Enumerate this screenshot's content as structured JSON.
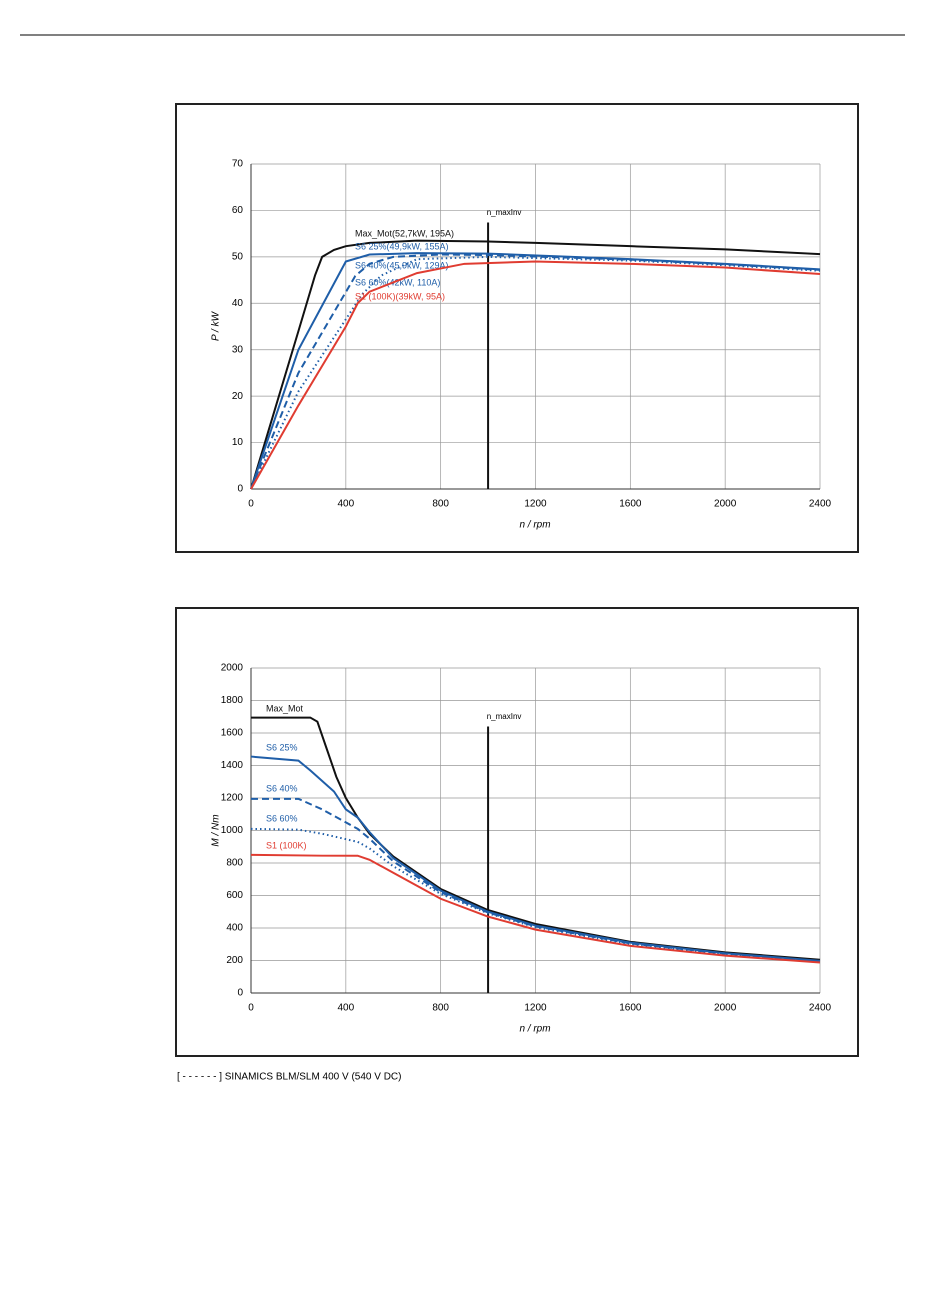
{
  "chart_data": [
    {
      "type": "line",
      "xlabel": "n / rpm",
      "ylabel": "P / kW",
      "xlim": [
        0,
        2400
      ],
      "xticks": [
        0,
        400,
        800,
        1200,
        1600,
        2000,
        2400
      ],
      "ylim": [
        0,
        70
      ],
      "yticks": [
        0,
        10,
        20,
        30,
        40,
        50,
        60,
        70
      ],
      "grid": true,
      "annotation": {
        "x": 1000,
        "label": "n_maxInv"
      },
      "series": [
        {
          "name": "Max_Mot(52,7kW, 195A)",
          "color": "#111111",
          "dash": "solid",
          "x": [
            0,
            100,
            200,
            270,
            300,
            350,
            400,
            500,
            700,
            1000,
            1200,
            1600,
            2000,
            2400
          ],
          "values": [
            0,
            17,
            34,
            46,
            50,
            51.5,
            52.3,
            53,
            53.5,
            53.3,
            53,
            52.3,
            51.6,
            50.6
          ]
        },
        {
          "name": "S6 25%(49,9kW, 155A)",
          "color": "#1f5ea8",
          "dash": "solid",
          "x": [
            0,
            200,
            400,
            500,
            700,
            1000,
            1600,
            2000,
            2400
          ],
          "values": [
            0,
            30,
            49,
            50.5,
            50.8,
            50.7,
            49.5,
            48.5,
            47.3
          ]
        },
        {
          "name": "S6 40%(45,9kW, 129A)",
          "color": "#1f5ea8",
          "dash": "dashed",
          "x": [
            0,
            200,
            440,
            500,
            600,
            800,
            1000,
            1600,
            2000,
            2400
          ],
          "values": [
            0,
            25,
            45.9,
            48.5,
            50,
            50.5,
            50.4,
            49.4,
            48.4,
            47.2
          ]
        },
        {
          "name": "S6 60%(42kW, 110A)",
          "color": "#1f5ea8",
          "dash": "dotted",
          "x": [
            0,
            200,
            470,
            550,
            700,
            1000,
            1600,
            2000,
            2400
          ],
          "values": [
            0,
            21,
            42,
            46,
            49.5,
            50,
            49.2,
            48.2,
            47
          ]
        },
        {
          "name": "S1 (100K)(39kW, 95A)",
          "color": "#e03c31",
          "dash": "solid",
          "x": [
            0,
            200,
            400,
            450,
            500,
            700,
            900,
            1200,
            1600,
            2000,
            2400
          ],
          "values": [
            0,
            18,
            35,
            40,
            42.5,
            46.5,
            48.5,
            49,
            48.5,
            47.7,
            46.3
          ]
        }
      ]
    },
    {
      "type": "line",
      "xlabel": "n / rpm",
      "ylabel": "M / Nm",
      "xlim": [
        0,
        2400
      ],
      "xticks": [
        0,
        400,
        800,
        1200,
        1600,
        2000,
        2400
      ],
      "ylim": [
        0,
        2000
      ],
      "yticks": [
        0,
        200,
        400,
        600,
        800,
        1000,
        1200,
        1400,
        1600,
        1800,
        2000
      ],
      "grid": true,
      "annotation": {
        "x": 1000,
        "label": "n_maxInv"
      },
      "series": [
        {
          "name": "Max_Mot",
          "color": "#111111",
          "dash": "solid",
          "x": [
            0,
            250,
            280,
            320,
            360,
            400,
            450,
            500,
            600,
            800,
            1000,
            1200,
            1600,
            2000,
            2400
          ],
          "values": [
            1695,
            1695,
            1670,
            1500,
            1330,
            1200,
            1080,
            980,
            840,
            640,
            510,
            425,
            315,
            250,
            205
          ]
        },
        {
          "name": "S6 25%",
          "color": "#1f5ea8",
          "dash": "solid",
          "x": [
            0,
            200,
            250,
            350,
            400,
            450,
            500,
            600,
            800,
            1000,
            1200,
            1600,
            2000,
            2400
          ],
          "values": [
            1455,
            1430,
            1370,
            1240,
            1130,
            1080,
            990,
            830,
            630,
            500,
            415,
            310,
            245,
            198
          ]
        },
        {
          "name": "S6 40%",
          "color": "#1f5ea8",
          "dash": "dashed",
          "x": [
            0,
            200,
            300,
            400,
            450,
            500,
            600,
            800,
            1000,
            1200,
            1600,
            2000,
            2400
          ],
          "values": [
            1195,
            1195,
            1130,
            1050,
            1010,
            950,
            810,
            620,
            495,
            410,
            305,
            242,
            196
          ]
        },
        {
          "name": "S6 60%",
          "color": "#1f5ea8",
          "dash": "dotted",
          "x": [
            0,
            200,
            300,
            450,
            500,
            600,
            800,
            1000,
            1200,
            1600,
            2000,
            2400
          ],
          "values": [
            1010,
            1005,
            980,
            930,
            890,
            780,
            610,
            490,
            405,
            300,
            238,
            193
          ]
        },
        {
          "name": "S1 (100K)",
          "color": "#e03c31",
          "dash": "solid",
          "x": [
            0,
            300,
            450,
            500,
            600,
            800,
            1000,
            1200,
            1600,
            2000,
            2400
          ],
          "values": [
            850,
            845,
            845,
            820,
            740,
            580,
            470,
            390,
            290,
            230,
            188
          ]
        }
      ]
    }
  ],
  "note": "[ - - - - - - ]  SINAMICS BLM/SLM 400 V (540 V DC)"
}
